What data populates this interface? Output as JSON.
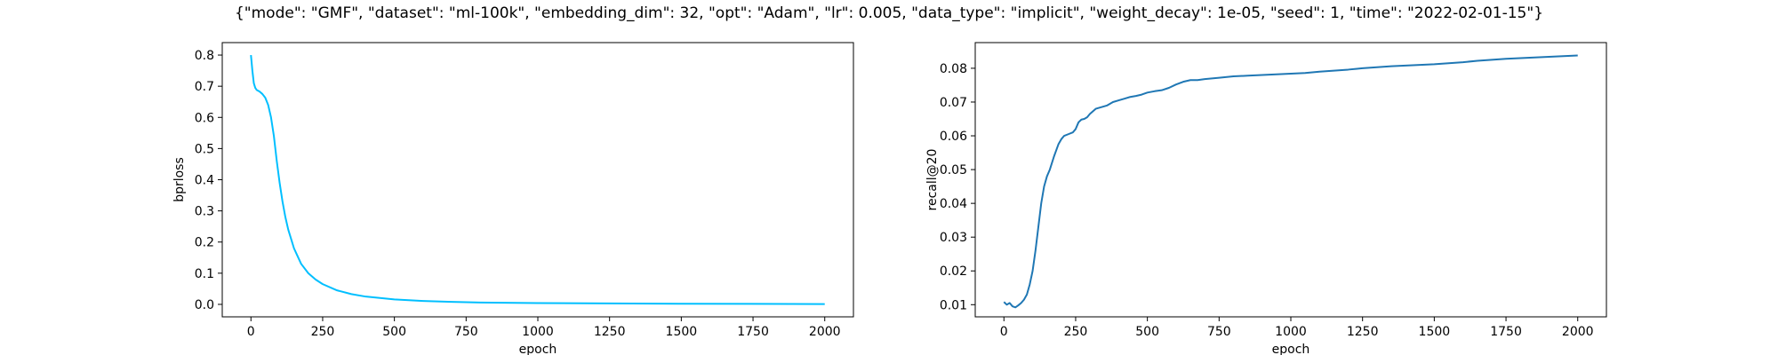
{
  "figure": {
    "suptitle": "{\"mode\": \"GMF\", \"dataset\": \"ml-100k\", \"embedding_dim\": 32, \"opt\": \"Adam\", \"lr\": 0.005, \"data_type\": \"implicit\", \"weight_decay\": 1e-05, \"seed\": 1, \"time\": \"2022-02-01-15\"}"
  },
  "chart_data": [
    {
      "type": "line",
      "title": "",
      "xlabel": "epoch",
      "ylabel": "bprloss",
      "xlim": [
        -100,
        2100
      ],
      "ylim": [
        -0.04,
        0.84
      ],
      "xticks": [
        0,
        250,
        500,
        750,
        1000,
        1250,
        1500,
        1750,
        2000
      ],
      "yticks": [
        0.0,
        0.1,
        0.2,
        0.3,
        0.4,
        0.5,
        0.6,
        0.7,
        0.8
      ],
      "ytick_labels": [
        "0.0",
        "0.1",
        "0.2",
        "0.3",
        "0.4",
        "0.5",
        "0.6",
        "0.7",
        "0.8"
      ],
      "grid": false,
      "color": "#00bfff",
      "series": [
        {
          "x": [
            0,
            5,
            10,
            15,
            20,
            30,
            40,
            50,
            60,
            70,
            80,
            90,
            100,
            110,
            120,
            130,
            140,
            150,
            160,
            175,
            200,
            225,
            250,
            300,
            350,
            400,
            500,
            600,
            700,
            800,
            1000,
            1250,
            1500,
            1750,
            2000
          ],
          "y": [
            0.8,
            0.75,
            0.71,
            0.695,
            0.688,
            0.683,
            0.675,
            0.663,
            0.64,
            0.6,
            0.54,
            0.46,
            0.39,
            0.33,
            0.28,
            0.24,
            0.21,
            0.18,
            0.16,
            0.13,
            0.1,
            0.08,
            0.065,
            0.045,
            0.033,
            0.025,
            0.016,
            0.011,
            0.008,
            0.006,
            0.004,
            0.003,
            0.002,
            0.0015,
            0.001
          ]
        }
      ]
    },
    {
      "type": "line",
      "title": "",
      "xlabel": "epoch",
      "ylabel": "recall@20",
      "xlim": [
        -100,
        2100
      ],
      "ylim": [
        0.0064,
        0.0876
      ],
      "xticks": [
        0,
        250,
        500,
        750,
        1000,
        1250,
        1500,
        1750,
        2000
      ],
      "yticks": [
        0.01,
        0.02,
        0.03,
        0.04,
        0.05,
        0.06,
        0.07,
        0.08
      ],
      "ytick_labels": [
        "0.01",
        "0.02",
        "0.03",
        "0.04",
        "0.05",
        "0.06",
        "0.07",
        "0.08"
      ],
      "grid": false,
      "color": "#1f77b4",
      "series": [
        {
          "x": [
            0,
            10,
            20,
            30,
            40,
            50,
            60,
            70,
            80,
            90,
            100,
            110,
            120,
            130,
            140,
            150,
            160,
            175,
            190,
            200,
            210,
            225,
            240,
            250,
            260,
            270,
            280,
            290,
            300,
            320,
            340,
            360,
            380,
            400,
            420,
            440,
            460,
            480,
            500,
            525,
            550,
            575,
            600,
            625,
            650,
            675,
            700,
            750,
            800,
            850,
            900,
            950,
            1000,
            1050,
            1100,
            1150,
            1200,
            1250,
            1300,
            1350,
            1400,
            1450,
            1500,
            1550,
            1600,
            1650,
            1700,
            1750,
            1800,
            1850,
            1900,
            1950,
            2000
          ],
          "y": [
            0.0108,
            0.01,
            0.0105,
            0.0095,
            0.0092,
            0.0098,
            0.0105,
            0.0115,
            0.013,
            0.016,
            0.02,
            0.026,
            0.033,
            0.04,
            0.045,
            0.048,
            0.05,
            0.054,
            0.0575,
            0.059,
            0.06,
            0.0605,
            0.061,
            0.062,
            0.064,
            0.0648,
            0.065,
            0.0655,
            0.0665,
            0.068,
            0.0685,
            0.069,
            0.07,
            0.0705,
            0.071,
            0.0715,
            0.0718,
            0.0722,
            0.0728,
            0.0732,
            0.0735,
            0.0742,
            0.0752,
            0.076,
            0.0765,
            0.0765,
            0.0768,
            0.0772,
            0.0776,
            0.0778,
            0.078,
            0.0782,
            0.0784,
            0.0786,
            0.079,
            0.0793,
            0.0796,
            0.08,
            0.0803,
            0.0806,
            0.0808,
            0.081,
            0.0812,
            0.0815,
            0.0818,
            0.0822,
            0.0825,
            0.0828,
            0.083,
            0.0832,
            0.0834,
            0.0836,
            0.0838
          ]
        }
      ]
    }
  ]
}
